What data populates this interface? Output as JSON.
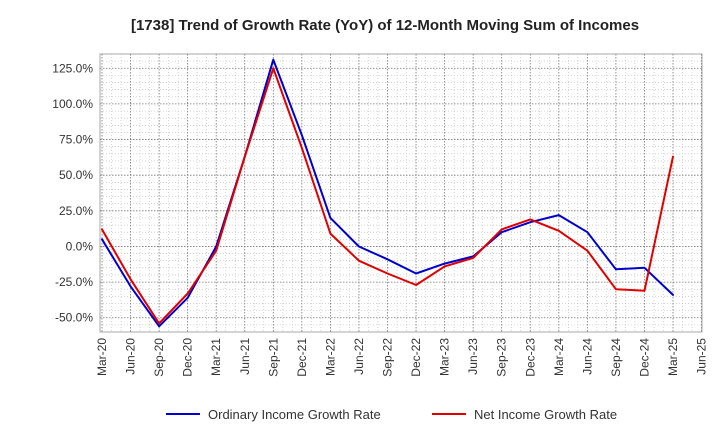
{
  "chart_data": {
    "type": "line",
    "title": "[1738]  Trend of Growth Rate (YoY) of 12-Month Moving Sum of Incomes",
    "x": [
      "Mar-20",
      "Jun-20",
      "Sep-20",
      "Dec-20",
      "Mar-21",
      "Jun-21",
      "Sep-21",
      "Dec-21",
      "Mar-22",
      "Jun-22",
      "Sep-22",
      "Dec-22",
      "Mar-23",
      "Jun-23",
      "Sep-23",
      "Dec-23",
      "Mar-24",
      "Jun-24",
      "Sep-24",
      "Dec-24",
      "Mar-25",
      "Jun-25"
    ],
    "x_tick_labels": [
      "Mar-20",
      "Jun-20",
      "Sep-20",
      "Dec-20",
      "Mar-21",
      "Jun-21",
      "Sep-21",
      "Dec-21",
      "Mar-22",
      "Jun-22",
      "Sep-22",
      "Dec-22",
      "Mar-23",
      "Jun-23",
      "Sep-23",
      "Dec-23",
      "Mar-24",
      "Jun-24",
      "Sep-24",
      "Dec-24",
      "Mar-25",
      "Jun-25"
    ],
    "y_ticks": [
      125,
      100,
      75,
      50,
      25,
      0,
      -25,
      -50
    ],
    "y_tick_labels": [
      "125.0%",
      "100.0%",
      "75.0%",
      "50.0%",
      "25.0%",
      "0.0%",
      "-25.0%",
      "-50.0%"
    ],
    "ylim": [
      -60,
      135
    ],
    "grid": true,
    "legend_position": "bottom",
    "series": [
      {
        "name": "Ordinary Income Growth Rate",
        "color": "#0000cc",
        "values": [
          5,
          -28,
          -56,
          -36,
          0,
          63,
          131,
          78,
          20,
          0,
          -9,
          -19,
          -12,
          -7,
          10,
          17,
          22,
          10,
          -16,
          -15,
          -34,
          null
        ]
      },
      {
        "name": "Net Income Growth Rate",
        "color": "#e00000",
        "values": [
          12,
          -23,
          -54,
          -33,
          -3,
          63,
          125,
          69,
          9,
          -10,
          -19,
          -27,
          -14,
          -8,
          12,
          19,
          11,
          -3,
          -30,
          -31,
          63,
          null
        ]
      }
    ]
  }
}
